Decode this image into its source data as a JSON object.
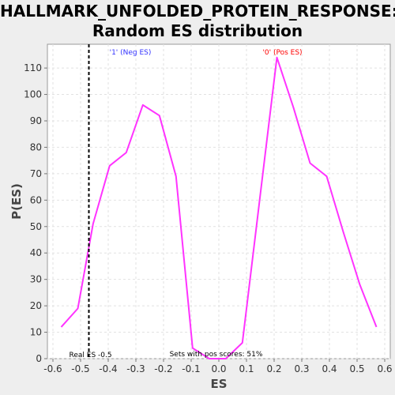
{
  "chart_data": {
    "type": "line",
    "title_line1": "HALLMARK_UNFOLDED_PROTEIN_RESPONSE:",
    "title_line2": "Random ES distribution",
    "xlabel": "ES",
    "ylabel": "P(ES)",
    "xlim": [
      -0.62,
      0.62
    ],
    "ylim": [
      0,
      119
    ],
    "x_ticks": [
      -0.6,
      -0.5,
      -0.4,
      -0.3,
      -0.2,
      -0.1,
      0.0,
      0.1,
      0.2,
      0.3,
      0.4,
      0.5,
      0.6
    ],
    "x_tick_labels": [
      "-0.6",
      "-0.5",
      "-0.4",
      "-0.3",
      "-0.2",
      "-0.1",
      "0.0",
      "0.1",
      "0.2",
      "0.3",
      "0.4",
      "0.5",
      "0.6"
    ],
    "y_ticks": [
      0,
      10,
      20,
      30,
      40,
      50,
      60,
      70,
      80,
      90,
      100,
      110
    ],
    "y_tick_labels": [
      "0",
      "10",
      "20",
      "30",
      "40",
      "50",
      "60",
      "70",
      "80",
      "90",
      "100",
      "110"
    ],
    "grid": true,
    "series": [
      {
        "color": "#ff33ff",
        "x": [
          -0.57,
          -0.51,
          -0.455,
          -0.395,
          -0.335,
          -0.275,
          -0.215,
          -0.155,
          -0.095,
          -0.035,
          0.025,
          0.085,
          0.21,
          0.27,
          0.33,
          0.39,
          0.45,
          0.51,
          0.57
        ],
        "y": [
          12,
          19,
          51,
          73,
          78,
          96,
          92,
          69,
          4,
          0,
          0,
          6,
          114,
          95,
          74,
          69,
          48,
          28,
          12
        ]
      }
    ],
    "real_es": {
      "x": -0.47,
      "label": "Real ES -0.5",
      "color": "#000000"
    },
    "annotations": {
      "neg_label": "'1' (Neg ES)",
      "neg_color": "#3333ff",
      "pos_label": "'0' (Pos ES)",
      "pos_color": "#ff0000",
      "pos_scores_label": "Sets with pos scores: 51%"
    }
  }
}
